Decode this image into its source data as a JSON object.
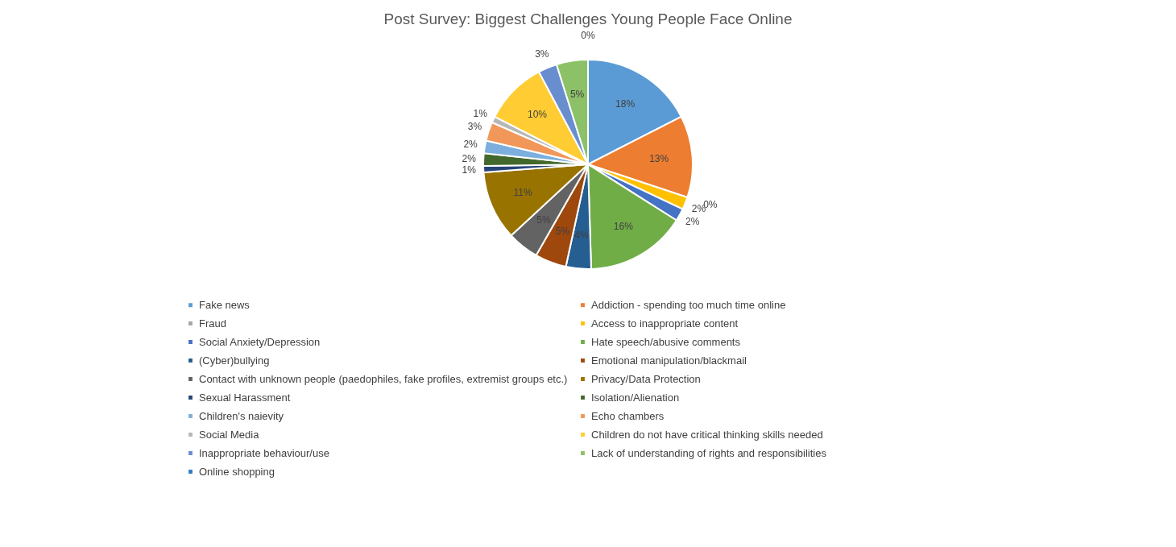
{
  "chart_data": {
    "type": "pie",
    "title": "Post Survey: Biggest Challenges Young People Face Online",
    "categories": [
      "Fake news",
      "Addiction - spending too much time online",
      "Fraud",
      "Access to inappropriate content",
      "Social Anxiety/Depression",
      "Hate speech/abusive comments",
      "(Cyber)bullying",
      "Emotional manipulation/blackmail",
      "Contact with unknown people (paedophiles, fake profiles, extremist groups etc.)",
      "Privacy/Data Protection",
      "Sexual Harassment",
      "Isolation/Alienation",
      "Children's naievity",
      "Echo chambers",
      "Social Media",
      "Children do not have critical thinking skills needed",
      "Inappropriate behaviour/use",
      "Lack of understanding of rights and responsibilities",
      "Online shopping"
    ],
    "values": [
      18,
      13,
      0,
      2,
      2,
      16,
      4,
      5,
      5,
      11,
      1,
      2,
      2,
      3,
      1,
      10,
      3,
      5,
      0
    ],
    "colors": [
      "#5b9bd5",
      "#ed7d31",
      "#a5a5a5",
      "#ffc000",
      "#4472c4",
      "#70ad47",
      "#255e91",
      "#9e480e",
      "#636363",
      "#997300",
      "#264478",
      "#43682b",
      "#7cafdd",
      "#f1975a",
      "#b7b7b7",
      "#ffcd33",
      "#698ed0",
      "#8cc168",
      "#327dc2"
    ],
    "value_labels": [
      "18%",
      "13%",
      "0%",
      "2%",
      "2%",
      "16%",
      "4%",
      "5%",
      "5%",
      "11%",
      "1%",
      "2%",
      "2%",
      "3%",
      "1%",
      "10%",
      "3%",
      "5%",
      "0%"
    ],
    "legend": "bottom"
  }
}
